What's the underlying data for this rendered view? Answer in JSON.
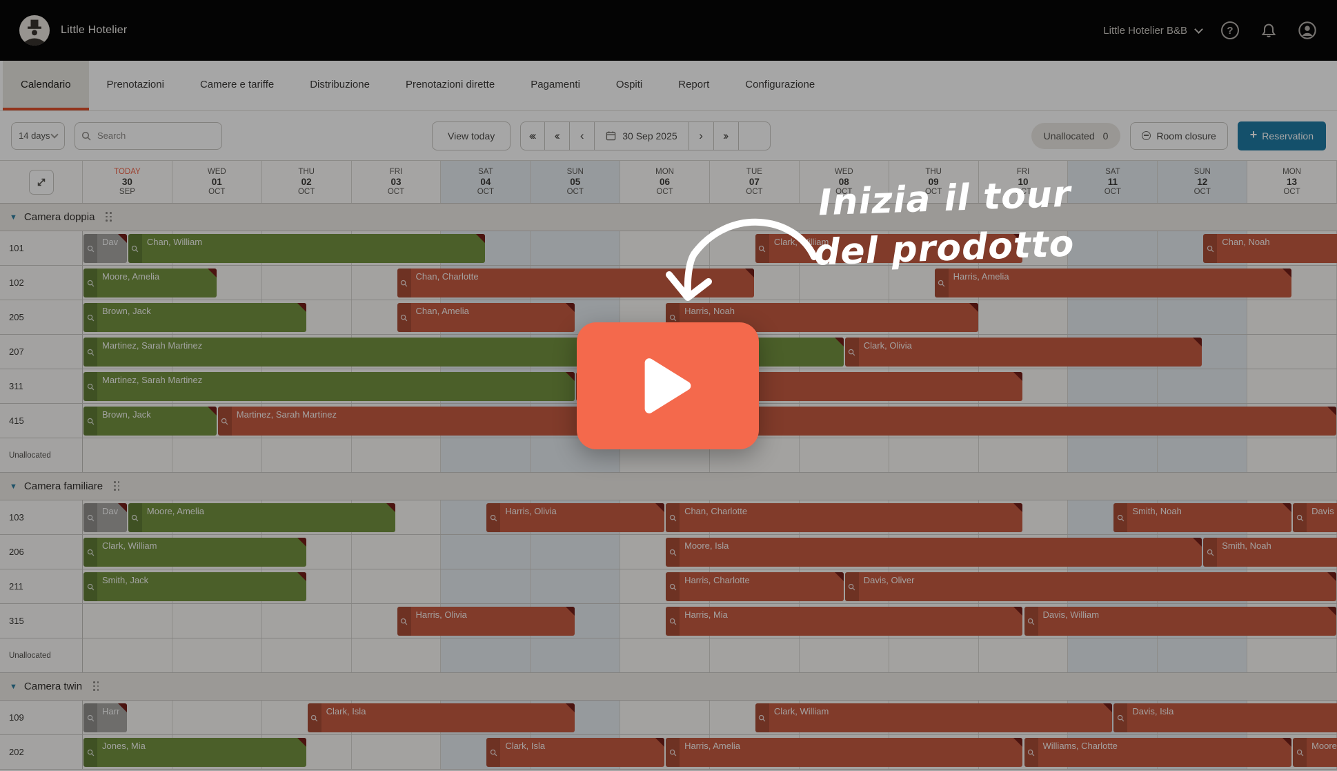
{
  "topbar": {
    "brand": "Little Hotelier",
    "property": "Little Hotelier B&B"
  },
  "tabs": [
    {
      "label": "Calendario",
      "active": true
    },
    {
      "label": "Prenotazioni",
      "active": false
    },
    {
      "label": "Camere e tariffe",
      "active": false
    },
    {
      "label": "Distribuzione",
      "active": false
    },
    {
      "label": "Prenotazioni dirette",
      "active": false
    },
    {
      "label": "Pagamenti",
      "active": false
    },
    {
      "label": "Ospiti",
      "active": false
    },
    {
      "label": "Report",
      "active": false
    },
    {
      "label": "Configurazione",
      "active": false
    }
  ],
  "toolbar": {
    "range_label": "14 days",
    "search_placeholder": "Search",
    "view_today": "View today",
    "date": "30 Sep 2025",
    "nav_prev": [
      "‹‹‹",
      "‹‹",
      "‹"
    ],
    "nav_next": [
      "›",
      "››"
    ],
    "unallocated_label": "Unallocated",
    "unallocated_count": "0",
    "room_closure_label": "Room closure",
    "reservation_label": "Reservation"
  },
  "days": [
    {
      "dow": "TODAY",
      "num": "30",
      "mon": "SEP",
      "today": true,
      "weekend": false
    },
    {
      "dow": "WED",
      "num": "01",
      "mon": "OCT",
      "today": false,
      "weekend": false
    },
    {
      "dow": "THU",
      "num": "02",
      "mon": "OCT",
      "today": false,
      "weekend": false
    },
    {
      "dow": "FRI",
      "num": "03",
      "mon": "OCT",
      "today": false,
      "weekend": false
    },
    {
      "dow": "SAT",
      "num": "04",
      "mon": "OCT",
      "today": false,
      "weekend": true
    },
    {
      "dow": "SUN",
      "num": "05",
      "mon": "OCT",
      "today": false,
      "weekend": true
    },
    {
      "dow": "MON",
      "num": "06",
      "mon": "OCT",
      "today": false,
      "weekend": false
    },
    {
      "dow": "TUE",
      "num": "07",
      "mon": "OCT",
      "today": false,
      "weekend": false
    },
    {
      "dow": "WED",
      "num": "08",
      "mon": "OCT",
      "today": false,
      "weekend": false
    },
    {
      "dow": "THU",
      "num": "09",
      "mon": "OCT",
      "today": false,
      "weekend": false
    },
    {
      "dow": "FRI",
      "num": "10",
      "mon": "OCT",
      "today": false,
      "weekend": false
    },
    {
      "dow": "SAT",
      "num": "11",
      "mon": "OCT",
      "today": false,
      "weekend": true
    },
    {
      "dow": "SUN",
      "num": "12",
      "mon": "OCT",
      "today": false,
      "weekend": true
    },
    {
      "dow": "MON",
      "num": "13",
      "mon": "OCT",
      "today": false,
      "weekend": false
    }
  ],
  "sections": [
    {
      "name": "Camera doppia",
      "rows": [
        {
          "room": "101",
          "unallocated": false,
          "bars": [
            {
              "label": "Dav",
              "s": 0,
              "e": 0.5,
              "type": "gray",
              "cut": false
            },
            {
              "label": "Chan, William",
              "s": 0.5,
              "e": 4.5,
              "type": "green",
              "cut": false
            },
            {
              "label": "Clark, William",
              "s": 7.5,
              "e": 10.5,
              "type": "red",
              "cut": false
            },
            {
              "label": "Chan, Noah",
              "s": 12.5,
              "e": 14.35,
              "type": "red",
              "cut": true
            }
          ]
        },
        {
          "room": "102",
          "unallocated": false,
          "bars": [
            {
              "label": "Moore, Amelia",
              "s": 0,
              "e": 1.5,
              "type": "green",
              "cut": false
            },
            {
              "label": "Chan, Charlotte",
              "s": 3.5,
              "e": 7.5,
              "type": "red",
              "cut": false
            },
            {
              "label": "Harris, Amelia",
              "s": 9.5,
              "e": 13.5,
              "type": "red",
              "cut": false
            }
          ]
        },
        {
          "room": "205",
          "unallocated": false,
          "bars": [
            {
              "label": "Brown, Jack",
              "s": 0,
              "e": 2.5,
              "type": "green",
              "cut": false
            },
            {
              "label": "Chan, Amelia",
              "s": 3.5,
              "e": 5.5,
              "type": "red",
              "cut": false
            },
            {
              "label": "Harris, Noah",
              "s": 6.5,
              "e": 10.0,
              "type": "red",
              "cut": false
            }
          ]
        },
        {
          "room": "207",
          "unallocated": false,
          "bars": [
            {
              "label": "Martinez, Sarah Martinez",
              "s": 0,
              "e": 8.5,
              "type": "green",
              "cut": false
            },
            {
              "label": "Clark, Olivia",
              "s": 8.5,
              "e": 12.5,
              "type": "red",
              "cut": false
            }
          ]
        },
        {
          "room": "311",
          "unallocated": false,
          "bars": [
            {
              "label": "Martinez, Sarah Martinez",
              "s": 0,
              "e": 5.5,
              "type": "green",
              "cut": false
            },
            {
              "label": "",
              "s": 5.5,
              "e": 10.5,
              "type": "red",
              "cut": false
            }
          ]
        },
        {
          "room": "415",
          "unallocated": false,
          "bars": [
            {
              "label": "Brown, Jack",
              "s": 0,
              "e": 1.5,
              "type": "green",
              "cut": false
            },
            {
              "label": "Martinez, Sarah Martinez",
              "s": 1.5,
              "e": 14.0,
              "type": "red",
              "cut": false
            }
          ]
        },
        {
          "room": "Unallocated",
          "unallocated": true,
          "bars": []
        }
      ]
    },
    {
      "name": "Camera familiare",
      "rows": [
        {
          "room": "103",
          "unallocated": false,
          "bars": [
            {
              "label": "Dav",
              "s": 0,
              "e": 0.5,
              "type": "gray",
              "cut": false
            },
            {
              "label": "Moore, Amelia",
              "s": 0.5,
              "e": 3.5,
              "type": "green",
              "cut": false
            },
            {
              "label": "Harris, Olivia",
              "s": 4.5,
              "e": 6.5,
              "type": "red",
              "cut": false
            },
            {
              "label": "Chan, Charlotte",
              "s": 6.5,
              "e": 10.5,
              "type": "red",
              "cut": false
            },
            {
              "label": "Smith, Noah",
              "s": 11.5,
              "e": 13.5,
              "type": "red",
              "cut": false
            },
            {
              "label": "Davis",
              "s": 13.5,
              "e": 14.35,
              "type": "red",
              "cut": true
            }
          ]
        },
        {
          "room": "206",
          "unallocated": false,
          "bars": [
            {
              "label": "Clark, William",
              "s": 0,
              "e": 2.5,
              "type": "green",
              "cut": false
            },
            {
              "label": "Moore, Isla",
              "s": 6.5,
              "e": 12.5,
              "type": "red",
              "cut": false
            },
            {
              "label": "Smith, Noah",
              "s": 12.5,
              "e": 14.35,
              "type": "red",
              "cut": true
            }
          ]
        },
        {
          "room": "211",
          "unallocated": false,
          "bars": [
            {
              "label": "Smith, Jack",
              "s": 0,
              "e": 2.5,
              "type": "green",
              "cut": false
            },
            {
              "label": "Harris, Charlotte",
              "s": 6.5,
              "e": 8.5,
              "type": "red",
              "cut": false
            },
            {
              "label": "Davis, Oliver",
              "s": 8.5,
              "e": 14.0,
              "type": "red",
              "cut": false
            }
          ]
        },
        {
          "room": "315",
          "unallocated": false,
          "bars": [
            {
              "label": "Harris, Olivia",
              "s": 3.5,
              "e": 5.5,
              "type": "red",
              "cut": false
            },
            {
              "label": "Harris, Mia",
              "s": 6.5,
              "e": 10.5,
              "type": "red",
              "cut": false
            },
            {
              "label": "Davis, William",
              "s": 10.5,
              "e": 14.0,
              "type": "red",
              "cut": false
            }
          ]
        },
        {
          "room": "Unallocated",
          "unallocated": true,
          "bars": []
        }
      ]
    },
    {
      "name": "Camera twin",
      "rows": [
        {
          "room": "109",
          "unallocated": false,
          "bars": [
            {
              "label": "Harr",
              "s": 0,
              "e": 0.5,
              "type": "gray",
              "cut": false
            },
            {
              "label": "Clark, Isla",
              "s": 2.5,
              "e": 5.5,
              "type": "red",
              "cut": false
            },
            {
              "label": "Clark, William",
              "s": 7.5,
              "e": 11.5,
              "type": "red",
              "cut": false
            },
            {
              "label": "Davis, Isla",
              "s": 11.5,
              "e": 14.35,
              "type": "red",
              "cut": true
            }
          ]
        },
        {
          "room": "202",
          "unallocated": false,
          "bars": [
            {
              "label": "Jones, Mia",
              "s": 0,
              "e": 2.5,
              "type": "green",
              "cut": false
            },
            {
              "label": "Clark, Isla",
              "s": 4.5,
              "e": 6.5,
              "type": "red",
              "cut": false
            },
            {
              "label": "Harris, Amelia",
              "s": 6.5,
              "e": 10.5,
              "type": "red",
              "cut": false
            },
            {
              "label": "Williams, Charlotte",
              "s": 10.5,
              "e": 13.5,
              "type": "red",
              "cut": false
            },
            {
              "label": "Moore",
              "s": 13.5,
              "e": 14.35,
              "type": "red",
              "cut": true
            }
          ]
        }
      ]
    }
  ],
  "overlay": {
    "line1": "Inizia il tour",
    "line2": "del prodotto"
  },
  "colors": {
    "accent": "#e0512c",
    "reservation_button": "#207ba5",
    "bar_green": "#73923f",
    "bar_red": "#c65b41",
    "bar_gray": "#a9a8a5",
    "bar_notch": "#731f19",
    "weekend_cell": "#e6edf2",
    "play_button": "#f4694c",
    "today_text": "#f0654a"
  }
}
